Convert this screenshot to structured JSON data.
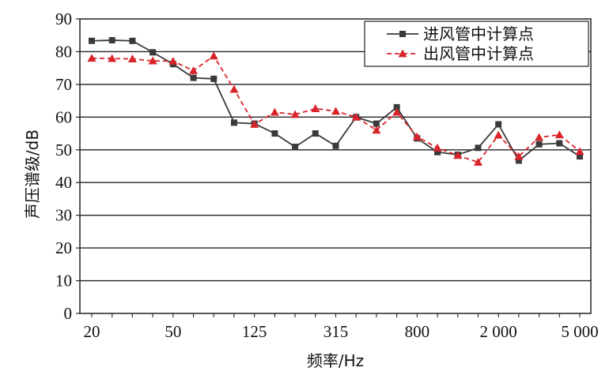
{
  "chart_data": {
    "type": "line",
    "xlabel": "频率/Hz",
    "ylabel": "声压谱级/dB",
    "ylim": [
      0,
      90
    ],
    "yticks": [
      0,
      10,
      20,
      30,
      40,
      50,
      60,
      70,
      80,
      90
    ],
    "xtick_labels": [
      "20",
      "50",
      "125",
      "315",
      "800",
      "2 000",
      "5 000"
    ],
    "x": [
      20,
      25,
      31.5,
      40,
      50,
      63,
      80,
      100,
      125,
      160,
      200,
      250,
      315,
      400,
      500,
      630,
      800,
      1000,
      1250,
      1600,
      2000,
      2500,
      3150,
      4000,
      5000
    ],
    "grid": "horizontal",
    "legend_position": "top-right",
    "series": [
      {
        "name": "进风管中计算点",
        "color": "#3a3a3a",
        "marker": "square",
        "line": "solid",
        "values": [
          83.3,
          83.5,
          83.3,
          79.8,
          76.2,
          72.0,
          71.7,
          58.3,
          58.0,
          55.0,
          50.9,
          55.0,
          51.2,
          60.0,
          58.0,
          63.0,
          53.5,
          49.3,
          48.5,
          50.6,
          57.8,
          46.7,
          51.7,
          52.0,
          48.0
        ]
      },
      {
        "name": "出风管中计算点",
        "color": "#d9242b",
        "marker": "triangle",
        "line": "dashed",
        "values": [
          78.0,
          77.9,
          77.8,
          77.2,
          77.1,
          74.2,
          78.7,
          68.5,
          57.8,
          61.5,
          60.8,
          62.6,
          61.8,
          60.0,
          56.0,
          61.5,
          54.0,
          50.6,
          48.3,
          46.2,
          54.5,
          48.0,
          53.8,
          54.6,
          49.5
        ]
      }
    ]
  }
}
